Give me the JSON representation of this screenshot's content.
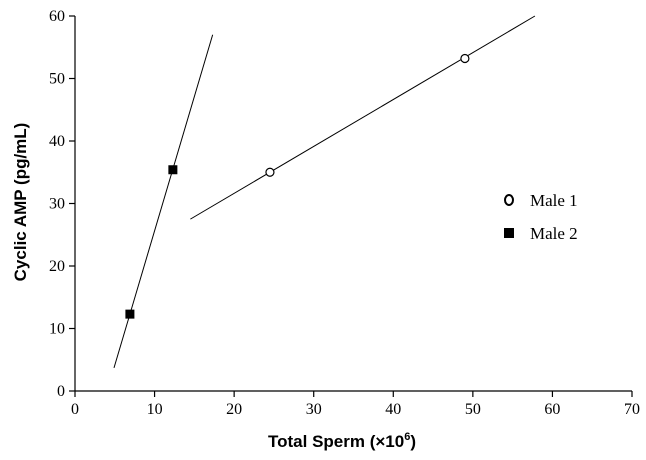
{
  "chart_data": {
    "type": "scatter",
    "xlabel": "Total Sperm (×10",
    "xlabel_sup": "6",
    "xlabel_end": ")",
    "ylabel": "Cyclic AMP (pg/mL)",
    "xlim": [
      0,
      70
    ],
    "ylim": [
      0,
      60
    ],
    "xticks": [
      0,
      10,
      20,
      30,
      40,
      50,
      60,
      70
    ],
    "yticks": [
      0,
      10,
      20,
      30,
      40,
      50,
      60
    ],
    "grid": false,
    "legend_position": "right-middle",
    "series": [
      {
        "name": "Male 1",
        "marker": "open-circle",
        "x": [
          24.5,
          49.0
        ],
        "y": [
          35.0,
          53.2
        ],
        "trendline": {
          "x": [
            14.5,
            57.8
          ],
          "y": [
            27.5,
            60.0
          ]
        }
      },
      {
        "name": "Male 2",
        "marker": "filled-square",
        "x": [
          6.9,
          12.3
        ],
        "y": [
          12.3,
          35.4
        ],
        "trendline": {
          "x": [
            4.9,
            17.3
          ],
          "y": [
            3.7,
            57.0
          ]
        }
      }
    ]
  }
}
